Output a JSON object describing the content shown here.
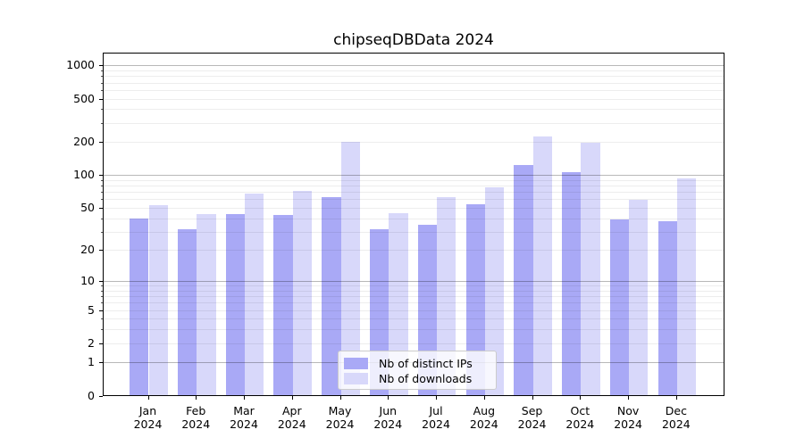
{
  "title": "chipseqDBData 2024",
  "chart_data": {
    "type": "bar",
    "title": "chipseqDBData 2024",
    "categories": [
      "Jan",
      "Feb",
      "Mar",
      "Apr",
      "May",
      "Jun",
      "Jul",
      "Aug",
      "Sep",
      "Oct",
      "Nov",
      "Dec"
    ],
    "category_year": "2024",
    "series": [
      {
        "name": "Nb of distinct IPs",
        "color": "#a9a9f6",
        "values": [
          39,
          31,
          43,
          42,
          61,
          31,
          34,
          53,
          122,
          104,
          38,
          37
        ]
      },
      {
        "name": "Nb of downloads",
        "color": "#d8d8fa",
        "values": [
          52,
          43,
          67,
          70,
          198,
          44,
          61,
          76,
          220,
          196,
          58,
          91
        ]
      }
    ],
    "y_scale": "log1p",
    "y_ticks": [
      0,
      1,
      2,
      5,
      10,
      20,
      50,
      100,
      200,
      500,
      1000
    ],
    "ylim": [
      0,
      1300
    ],
    "grid": "on",
    "legend_position": "lower center"
  },
  "colors": {
    "major_grid": "rgba(0,0,0,0.28)",
    "minor_grid": "rgba(0,0,0,0.07)",
    "axis": "#000000",
    "background": "#ffffff"
  }
}
